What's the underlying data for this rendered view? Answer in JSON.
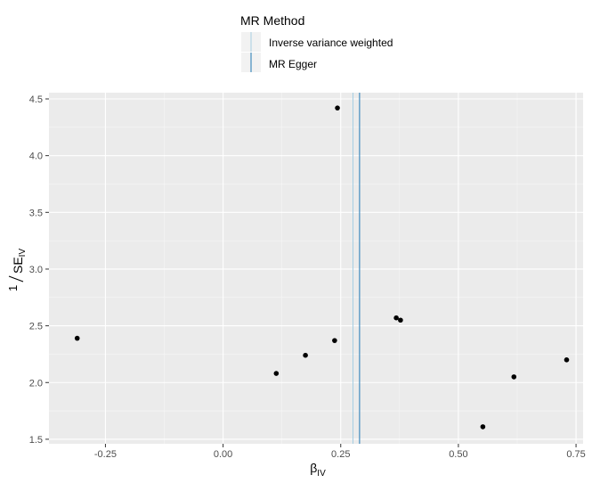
{
  "chart_data": {
    "type": "scatter",
    "title": "",
    "xlabel": "β",
    "xlabel_sub": "IV",
    "ylabel_num": "1",
    "ylabel_den": "SE",
    "ylabel_sub": "IV",
    "xlim": [
      -0.37,
      0.765
    ],
    "ylim": [
      1.46,
      4.555
    ],
    "x_ticks": [
      -0.25,
      0.0,
      0.25,
      0.5,
      0.75
    ],
    "x_tick_labels": [
      "-0.25",
      "0.00",
      "0.25",
      "0.50",
      "0.75"
    ],
    "y_ticks": [
      1.5,
      2.0,
      2.5,
      3.0,
      3.5,
      4.0,
      4.5
    ],
    "y_tick_labels": [
      "1.5",
      "2.0",
      "2.5",
      "3.0",
      "3.5",
      "4.0",
      "4.5"
    ],
    "grid": true,
    "legend": {
      "title": "MR Method",
      "position": "top",
      "entries": [
        {
          "name": "Inverse variance weighted",
          "color": "#a6cee3"
        },
        {
          "name": "MR Egger",
          "color": "#1f78b4"
        }
      ]
    },
    "points": [
      {
        "x": -0.31,
        "y": 2.39
      },
      {
        "x": 0.113,
        "y": 2.08
      },
      {
        "x": 0.175,
        "y": 2.24
      },
      {
        "x": 0.237,
        "y": 2.37
      },
      {
        "x": 0.243,
        "y": 4.42
      },
      {
        "x": 0.368,
        "y": 2.57
      },
      {
        "x": 0.377,
        "y": 2.55
      },
      {
        "x": 0.552,
        "y": 1.61
      },
      {
        "x": 0.618,
        "y": 2.05
      },
      {
        "x": 0.73,
        "y": 2.2
      }
    ],
    "vlines": [
      {
        "method": "Inverse variance weighted",
        "x": 0.276,
        "color": "#a6cee3"
      },
      {
        "method": "MR Egger",
        "x": 0.29,
        "color": "#1f78b4"
      }
    ]
  }
}
